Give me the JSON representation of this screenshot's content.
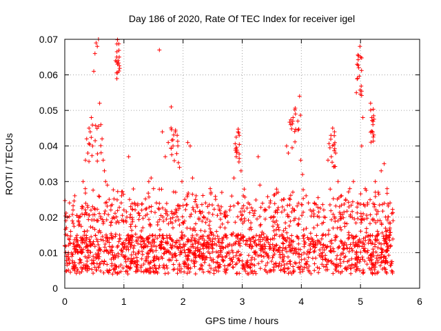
{
  "chart_data": {
    "type": "scatter",
    "title": "Day 186 of 2020, Rate Of TEC Index for receiver igel",
    "xlabel": "GPS time / hours",
    "ylabel": "ROTI / TECUs",
    "xlim": [
      0,
      6
    ],
    "ylim": [
      0,
      0.07
    ],
    "x_ticks": [
      "0",
      "1",
      "2",
      "3",
      "4",
      "5",
      "6"
    ],
    "y_ticks": [
      "0",
      "0.01",
      "0.02",
      "0.03",
      "0.04",
      "0.05",
      "0.06",
      "0.07"
    ],
    "grid": true,
    "marker": "+",
    "marker_color": "#ff0000",
    "time_range_hours": [
      0,
      5.55
    ],
    "series": [
      {
        "name": "ROTI",
        "points": [
          [
            0.0,
            0.012
          ],
          [
            0.02,
            0.019
          ],
          [
            0.04,
            0.007
          ],
          [
            0.06,
            0.01
          ],
          [
            0.08,
            0.024
          ],
          [
            0.1,
            0.016
          ],
          [
            0.12,
            0.009
          ],
          [
            0.14,
            0.022
          ],
          [
            0.17,
            0.026
          ],
          [
            0.2,
            0.013
          ],
          [
            0.23,
            0.019
          ],
          [
            0.26,
            0.008
          ],
          [
            0.29,
            0.023
          ],
          [
            0.31,
            0.03
          ],
          [
            0.33,
            0.016
          ],
          [
            0.35,
            0.036
          ],
          [
            0.37,
            0.042
          ],
          [
            0.39,
            0.038
          ],
          [
            0.41,
            0.045
          ],
          [
            0.43,
            0.044
          ],
          [
            0.45,
            0.048
          ],
          [
            0.47,
            0.04
          ],
          [
            0.49,
            0.061
          ],
          [
            0.51,
            0.066
          ],
          [
            0.53,
            0.069
          ],
          [
            0.55,
            0.068
          ],
          [
            0.57,
            0.07
          ],
          [
            0.59,
            0.052
          ],
          [
            0.61,
            0.046
          ],
          [
            0.63,
            0.042
          ],
          [
            0.65,
            0.036
          ],
          [
            0.67,
            0.033
          ],
          [
            0.69,
            0.03
          ],
          [
            0.72,
            0.029
          ],
          [
            0.75,
            0.025
          ],
          [
            0.78,
            0.022
          ],
          [
            0.82,
            0.02
          ],
          [
            0.86,
            0.064
          ],
          [
            0.88,
            0.065
          ],
          [
            0.9,
            0.064
          ],
          [
            0.92,
            0.065
          ],
          [
            0.96,
            0.026
          ],
          [
            1.0,
            0.022
          ],
          [
            1.05,
            0.02
          ],
          [
            1.08,
            0.037
          ],
          [
            1.12,
            0.018
          ],
          [
            1.18,
            0.024
          ],
          [
            1.25,
            0.021
          ],
          [
            1.32,
            0.017
          ],
          [
            1.38,
            0.005
          ],
          [
            1.42,
            0.03
          ],
          [
            1.46,
            0.031
          ],
          [
            1.5,
            0.028
          ],
          [
            1.55,
            0.024
          ],
          [
            1.6,
            0.067
          ],
          [
            1.65,
            0.044
          ],
          [
            1.7,
            0.037
          ],
          [
            1.75,
            0.041
          ],
          [
            1.8,
            0.051
          ],
          [
            1.83,
            0.04
          ],
          [
            1.87,
            0.044
          ],
          [
            1.9,
            0.043
          ],
          [
            1.94,
            0.034
          ],
          [
            1.98,
            0.03
          ],
          [
            2.03,
            0.025
          ],
          [
            2.08,
            0.041
          ],
          [
            2.12,
            0.04
          ],
          [
            2.16,
            0.031
          ],
          [
            2.22,
            0.026
          ],
          [
            2.3,
            0.021
          ],
          [
            2.38,
            0.024
          ],
          [
            2.46,
            0.028
          ],
          [
            2.55,
            0.025
          ],
          [
            2.64,
            0.021
          ],
          [
            2.72,
            0.02
          ],
          [
            2.8,
            0.023
          ],
          [
            2.86,
            0.031
          ],
          [
            2.9,
            0.037
          ],
          [
            2.93,
            0.044
          ],
          [
            2.95,
            0.043
          ],
          [
            2.98,
            0.033
          ],
          [
            3.02,
            0.026
          ],
          [
            3.1,
            0.024
          ],
          [
            3.2,
            0.021
          ],
          [
            3.27,
            0.037
          ],
          [
            3.3,
            0.029
          ],
          [
            3.4,
            0.022
          ],
          [
            3.5,
            0.02
          ],
          [
            3.6,
            0.022
          ],
          [
            3.7,
            0.025
          ],
          [
            3.75,
            0.04
          ],
          [
            3.78,
            0.038
          ],
          [
            3.82,
            0.046
          ],
          [
            3.86,
            0.048
          ],
          [
            3.9,
            0.049
          ],
          [
            3.94,
            0.047
          ],
          [
            3.97,
            0.054
          ],
          [
            3.99,
            0.036
          ],
          [
            4.02,
            0.032
          ],
          [
            4.08,
            0.026
          ],
          [
            4.15,
            0.022
          ],
          [
            4.22,
            0.024
          ],
          [
            4.3,
            0.02
          ],
          [
            4.38,
            0.022
          ],
          [
            4.45,
            0.036
          ],
          [
            4.5,
            0.043
          ],
          [
            4.53,
            0.045
          ],
          [
            4.56,
            0.044
          ],
          [
            4.58,
            0.038
          ],
          [
            4.62,
            0.03
          ],
          [
            4.68,
            0.026
          ],
          [
            4.75,
            0.025
          ],
          [
            4.82,
            0.028
          ],
          [
            4.88,
            0.03
          ],
          [
            4.93,
            0.055
          ],
          [
            4.95,
            0.059
          ],
          [
            4.97,
            0.062
          ],
          [
            4.99,
            0.068
          ],
          [
            5.0,
            0.065
          ],
          [
            5.02,
            0.04
          ],
          [
            5.04,
            0.048
          ],
          [
            5.08,
            0.028
          ],
          [
            5.12,
            0.024
          ],
          [
            5.17,
            0.052
          ],
          [
            5.19,
            0.048
          ],
          [
            5.21,
            0.046
          ],
          [
            5.25,
            0.03
          ],
          [
            5.3,
            0.027
          ],
          [
            5.35,
            0.033
          ],
          [
            5.4,
            0.035
          ],
          [
            5.45,
            0.028
          ],
          [
            5.5,
            0.024
          ],
          [
            5.53,
            0.021
          ],
          [
            5.55,
            0.019
          ]
        ]
      }
    ]
  }
}
